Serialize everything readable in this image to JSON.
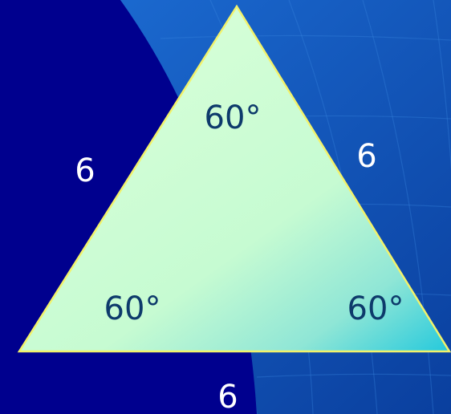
{
  "diagram": {
    "shape": "equilateral-triangle",
    "sides": {
      "left": "6",
      "right": "6",
      "bottom": "6"
    },
    "angles": {
      "top": "60°",
      "bottom_left": "60°",
      "bottom_right": "60°"
    }
  },
  "colors": {
    "background_dark": "#00008e",
    "background_blue": "#1560c8",
    "triangle_fill_light": "#d2ffd2",
    "triangle_fill_teal": "#2fd0dc",
    "triangle_outline": "#f2f26a",
    "side_label": "#ffffff",
    "angle_label": "#0d3a6b"
  }
}
